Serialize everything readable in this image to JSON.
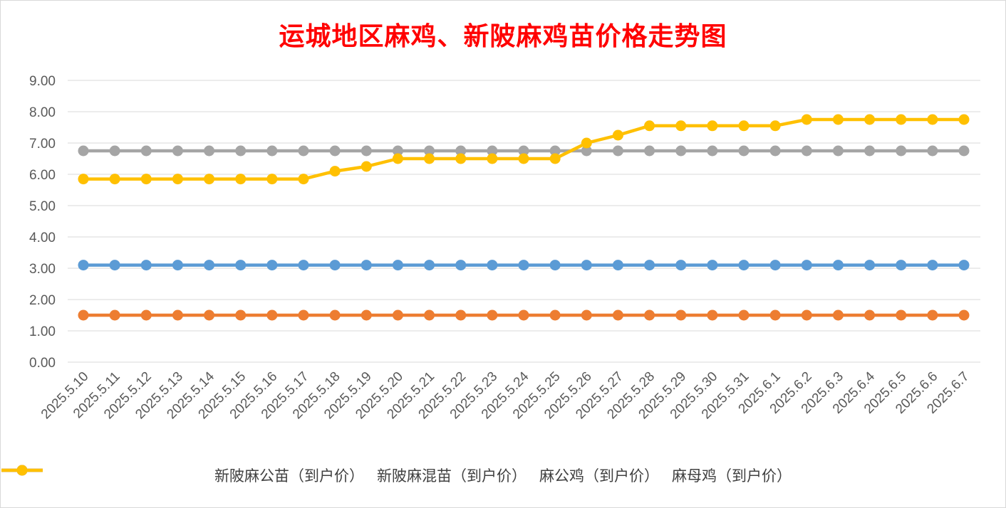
{
  "chart_data": {
    "type": "line",
    "title": "运城地区麻鸡、新陂麻鸡苗价格走势图",
    "categories": [
      "2025.5.10",
      "2025.5.11",
      "2025.5.12",
      "2025.5.13",
      "2025.5.14",
      "2025.5.15",
      "2025.5.16",
      "2025.5.17",
      "2025.5.18",
      "2025.5.19",
      "2025.5.20",
      "2025.5.21",
      "2025.5.22",
      "2025.5.23",
      "2025.5.24",
      "2025.5.25",
      "2025.5.26",
      "2025.5.27",
      "2025.5.28",
      "2025.5.29",
      "2025.5.30",
      "2025.5.31",
      "2025.6.1",
      "2025.6.2",
      "2025.6.3",
      "2025.6.4",
      "2025.6.5",
      "2025.6.6",
      "2025.6.7"
    ],
    "yticks": [
      "0.00",
      "1.00",
      "2.00",
      "3.00",
      "4.00",
      "5.00",
      "6.00",
      "7.00",
      "8.00",
      "9.00"
    ],
    "ylim": [
      0,
      9
    ],
    "grid": true,
    "legend_position": "bottom",
    "series": [
      {
        "name": "新陂麻公苗（到户价）",
        "color": "#5b9bd5",
        "values": [
          3.1,
          3.1,
          3.1,
          3.1,
          3.1,
          3.1,
          3.1,
          3.1,
          3.1,
          3.1,
          3.1,
          3.1,
          3.1,
          3.1,
          3.1,
          3.1,
          3.1,
          3.1,
          3.1,
          3.1,
          3.1,
          3.1,
          3.1,
          3.1,
          3.1,
          3.1,
          3.1,
          3.1,
          3.1
        ]
      },
      {
        "name": "新陂麻混苗（到户价）",
        "color": "#ed7d31",
        "values": [
          1.5,
          1.5,
          1.5,
          1.5,
          1.5,
          1.5,
          1.5,
          1.5,
          1.5,
          1.5,
          1.5,
          1.5,
          1.5,
          1.5,
          1.5,
          1.5,
          1.5,
          1.5,
          1.5,
          1.5,
          1.5,
          1.5,
          1.5,
          1.5,
          1.5,
          1.5,
          1.5,
          1.5,
          1.5
        ]
      },
      {
        "name": "麻公鸡（到户价）",
        "color": "#a5a5a5",
        "values": [
          6.75,
          6.75,
          6.75,
          6.75,
          6.75,
          6.75,
          6.75,
          6.75,
          6.75,
          6.75,
          6.75,
          6.75,
          6.75,
          6.75,
          6.75,
          6.75,
          6.75,
          6.75,
          6.75,
          6.75,
          6.75,
          6.75,
          6.75,
          6.75,
          6.75,
          6.75,
          6.75,
          6.75,
          6.75
        ]
      },
      {
        "name": "麻母鸡（到户价）",
        "color": "#ffc000",
        "values": [
          5.85,
          5.85,
          5.85,
          5.85,
          5.85,
          5.85,
          5.85,
          5.85,
          6.1,
          6.25,
          6.5,
          6.5,
          6.5,
          6.5,
          6.5,
          6.5,
          7.0,
          7.25,
          7.55,
          7.55,
          7.55,
          7.55,
          7.55,
          7.75,
          7.75,
          7.75,
          7.75,
          7.75,
          7.75
        ]
      }
    ]
  }
}
